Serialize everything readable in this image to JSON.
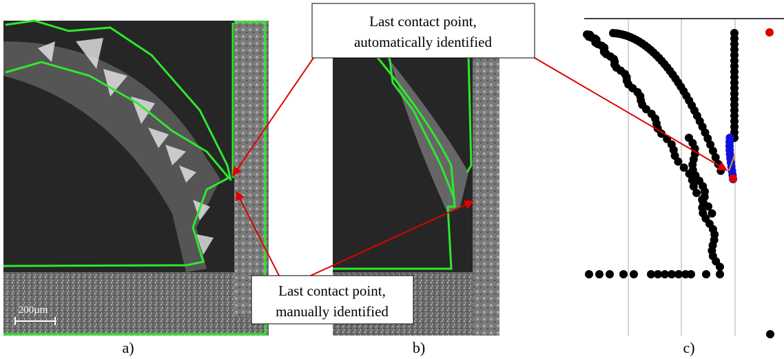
{
  "callouts": [
    {
      "lines": [
        "Last contact point,",
        "automatically identified"
      ]
    },
    {
      "lines": [
        "Last contact point,",
        "manually identified"
      ]
    }
  ],
  "scale_bar": "200µm",
  "panels": [
    {
      "label": "a)"
    },
    {
      "label": "b)"
    },
    {
      "label": "c)"
    }
  ]
}
